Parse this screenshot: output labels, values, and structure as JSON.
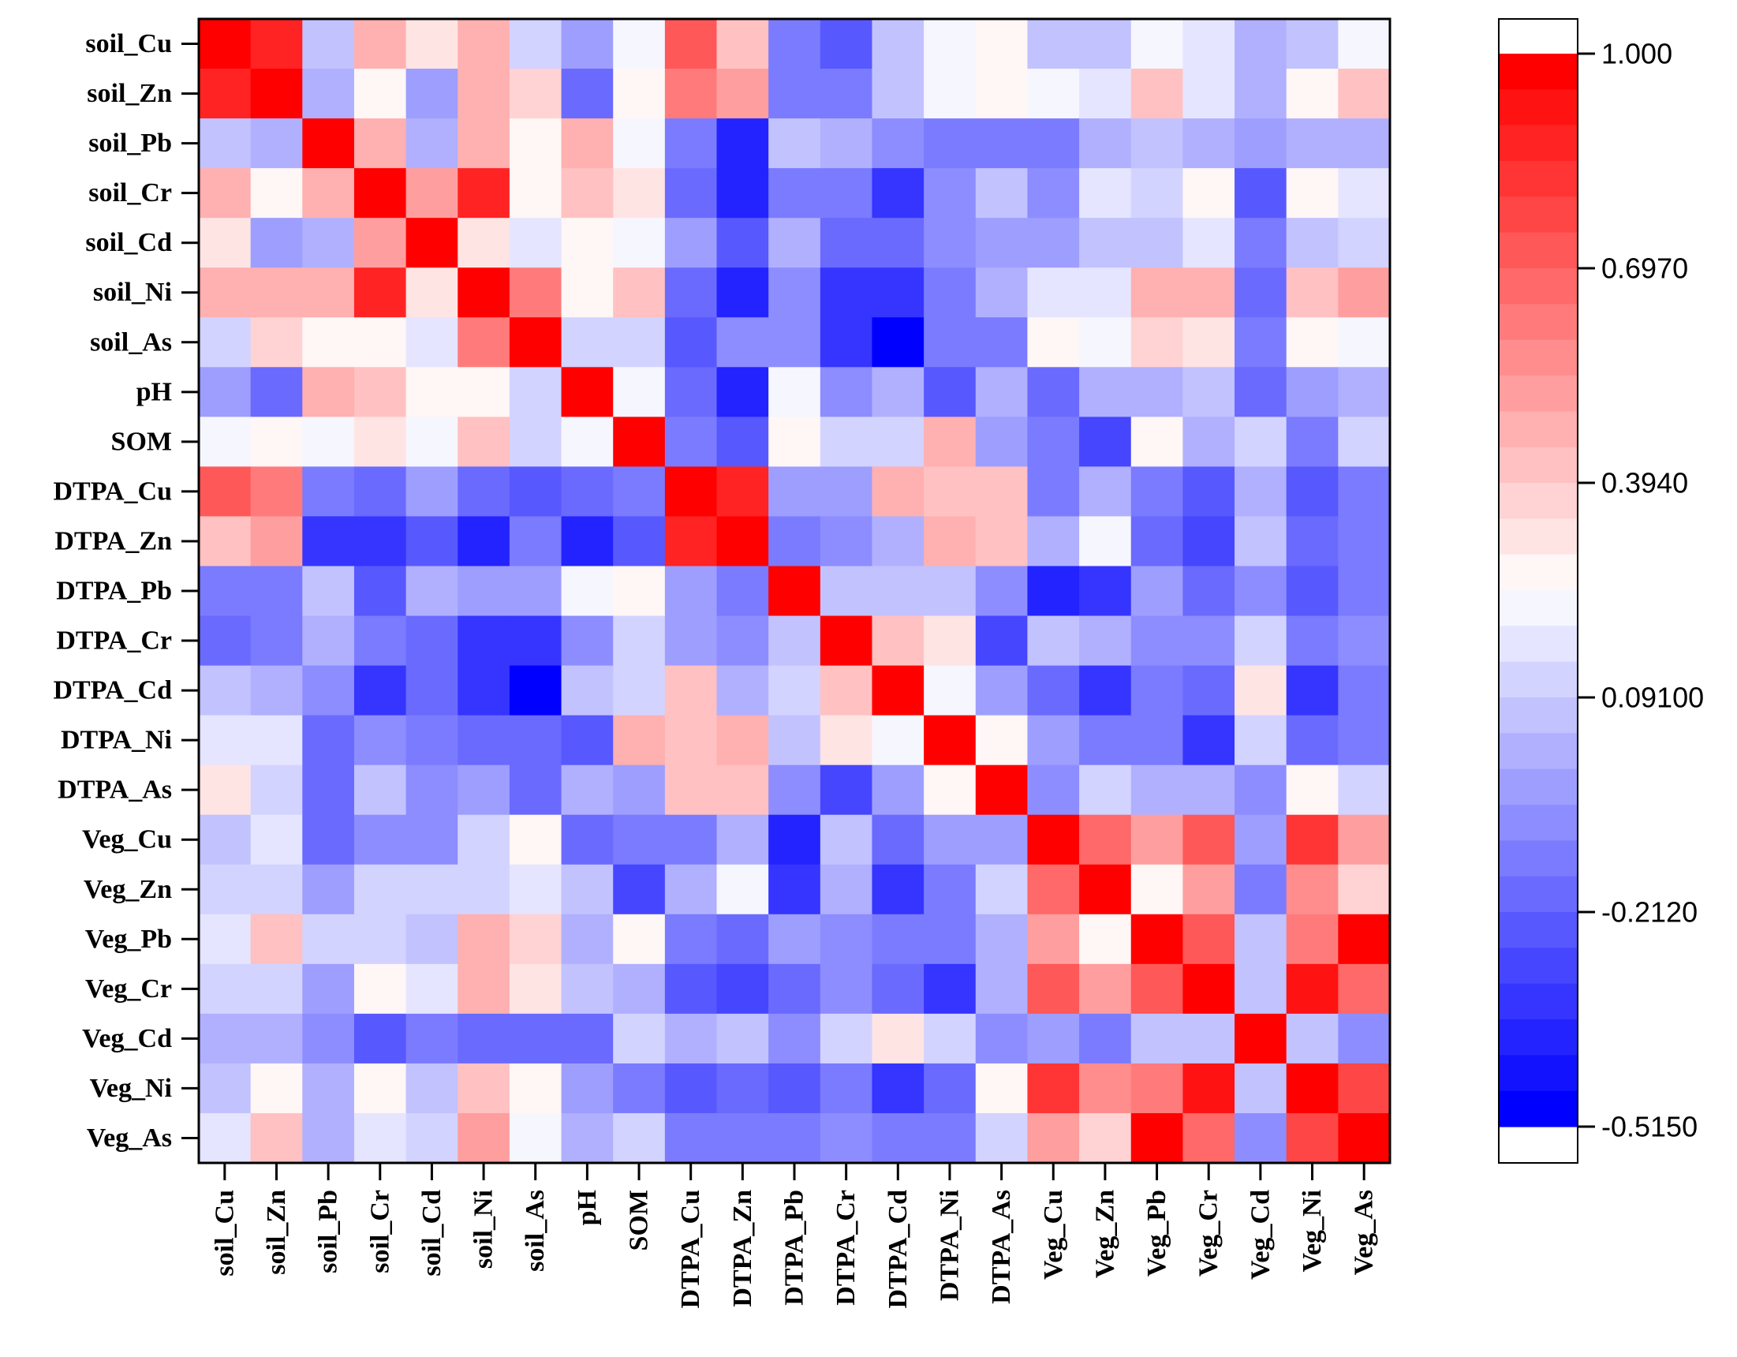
{
  "chart_data": {
    "type": "heatmap",
    "title": "",
    "row_labels": [
      "soil_Cu",
      "soil_Zn",
      "soil_Pb",
      "soil_Cr",
      "soil_Cd",
      "soil_Ni",
      "soil_As",
      "pH",
      "SOM",
      "DTPA_Cu",
      "DTPA_Zn",
      "DTPA_Pb",
      "DTPA_Cr",
      "DTPA_Cd",
      "DTPA_Ni",
      "DTPA_As",
      "Veg_Cu",
      "Veg_Zn",
      "Veg_Pb",
      "Veg_Cr",
      "Veg_Cd",
      "Veg_Ni",
      "Veg_As"
    ],
    "col_labels": [
      "soil_Cu",
      "soil_Zn",
      "soil_Pb",
      "soil_Cr",
      "soil_Cd",
      "soil_Ni",
      "soil_As",
      "pH",
      "SOM",
      "DTPA_Cu",
      "DTPA_Zn",
      "DTPA_Pb",
      "DTPA_Cr",
      "DTPA_Cd",
      "DTPA_Ni",
      "DTPA_As",
      "Veg_Cu",
      "Veg_Zn",
      "Veg_Pb",
      "Veg_Cr",
      "Veg_Cd",
      "Veg_Ni",
      "Veg_As"
    ],
    "values": [
      [
        1.0,
        0.85,
        0.05,
        0.45,
        0.32,
        0.48,
        0.12,
        -0.02,
        0.21,
        0.7,
        0.42,
        -0.12,
        -0.22,
        0.08,
        0.2,
        0.28,
        0.06,
        0.09,
        0.21,
        0.15,
        -0.01,
        0.08,
        0.2
      ],
      [
        0.85,
        1.0,
        0.03,
        0.26,
        -0.02,
        0.48,
        0.38,
        -0.2,
        0.28,
        0.6,
        0.52,
        -0.12,
        -0.12,
        0.07,
        0.2,
        0.25,
        0.2,
        0.16,
        0.42,
        0.17,
        0.02,
        0.29,
        0.4
      ],
      [
        0.05,
        0.03,
        1.0,
        0.45,
        0.04,
        0.48,
        0.26,
        0.48,
        0.21,
        -0.16,
        -0.4,
        0.08,
        0.0,
        -0.09,
        -0.12,
        -0.12,
        -0.15,
        0.0,
        0.08,
        0.0,
        -0.06,
        0.0,
        0.0
      ],
      [
        0.45,
        0.26,
        0.45,
        1.0,
        0.52,
        0.88,
        0.27,
        0.4,
        0.32,
        -0.2,
        -0.38,
        -0.16,
        -0.12,
        -0.35,
        -0.09,
        0.07,
        -0.08,
        0.15,
        0.1,
        0.28,
        -0.24,
        0.28,
        0.15
      ],
      [
        0.32,
        -0.02,
        0.04,
        0.52,
        1.0,
        0.34,
        0.16,
        0.28,
        0.22,
        -0.06,
        -0.22,
        -0.01,
        -0.2,
        -0.2,
        -0.09,
        -0.05,
        -0.05,
        0.09,
        0.05,
        0.15,
        -0.12,
        0.06,
        0.1
      ],
      [
        0.48,
        0.48,
        0.48,
        0.88,
        0.34,
        1.0,
        0.62,
        0.28,
        0.4,
        -0.2,
        -0.4,
        -0.08,
        -0.32,
        -0.32,
        -0.14,
        0.02,
        0.17,
        0.17,
        0.47,
        0.47,
        -0.18,
        0.44,
        0.52
      ],
      [
        0.12,
        0.38,
        0.26,
        0.27,
        0.16,
        0.62,
        1.0,
        0.1,
        0.14,
        -0.22,
        -0.09,
        -0.08,
        -0.35,
        -0.5,
        -0.14,
        -0.16,
        0.26,
        0.21,
        0.38,
        0.34,
        -0.15,
        0.26,
        0.2
      ],
      [
        -0.02,
        -0.2,
        0.48,
        0.4,
        0.28,
        0.28,
        0.1,
        1.0,
        0.21,
        -0.18,
        -0.4,
        0.22,
        -0.1,
        0.04,
        -0.24,
        0.04,
        -0.2,
        0.04,
        0.02,
        0.08,
        -0.18,
        -0.06,
        0.0
      ],
      [
        0.21,
        0.28,
        0.21,
        0.32,
        0.22,
        0.4,
        0.14,
        0.21,
        1.0,
        -0.12,
        -0.25,
        0.27,
        0.14,
        0.14,
        0.49,
        -0.06,
        -0.13,
        -0.3,
        0.28,
        0.02,
        0.14,
        -0.12,
        0.12
      ],
      [
        0.7,
        0.6,
        -0.16,
        -0.2,
        -0.06,
        -0.2,
        -0.22,
        -0.18,
        -0.12,
        1.0,
        0.85,
        -0.06,
        -0.06,
        0.45,
        0.4,
        0.4,
        -0.15,
        0.0,
        -0.15,
        -0.22,
        0.04,
        -0.22,
        -0.16
      ],
      [
        0.42,
        0.52,
        -0.32,
        -0.32,
        -0.22,
        -0.38,
        -0.13,
        -0.37,
        -0.25,
        0.85,
        1.0,
        -0.15,
        -0.1,
        0.04,
        0.47,
        0.4,
        0.0,
        0.21,
        -0.18,
        -0.3,
        0.06,
        -0.19,
        -0.14
      ],
      [
        -0.12,
        -0.12,
        0.08,
        -0.22,
        0.0,
        -0.06,
        -0.06,
        0.22,
        0.26,
        -0.06,
        -0.15,
        1.0,
        0.08,
        0.08,
        0.08,
        -0.09,
        -0.38,
        -0.32,
        -0.04,
        -0.2,
        -0.1,
        -0.22,
        -0.12
      ],
      [
        -0.18,
        -0.12,
        -0.01,
        -0.14,
        -0.18,
        -0.32,
        -0.32,
        -0.11,
        0.13,
        -0.06,
        -0.1,
        0.08,
        1.0,
        0.44,
        0.34,
        -0.28,
        0.07,
        0.02,
        -0.08,
        -0.08,
        0.14,
        -0.14,
        -0.1
      ],
      [
        0.07,
        0.03,
        -0.09,
        -0.32,
        -0.2,
        -0.35,
        -0.5,
        0.07,
        0.13,
        0.4,
        0.04,
        0.12,
        0.44,
        1.0,
        0.2,
        -0.06,
        -0.2,
        -0.36,
        -0.16,
        -0.2,
        0.32,
        -0.32,
        -0.14
      ],
      [
        0.19,
        0.19,
        -0.18,
        -0.09,
        -0.12,
        -0.18,
        -0.18,
        -0.22,
        0.45,
        0.4,
        0.47,
        0.08,
        0.34,
        0.2,
        1.0,
        0.28,
        -0.06,
        -0.12,
        -0.12,
        -0.35,
        0.14,
        -0.2,
        -0.12
      ],
      [
        0.34,
        0.14,
        -0.18,
        0.08,
        -0.09,
        -0.04,
        -0.2,
        0.04,
        -0.06,
        0.4,
        0.4,
        -0.09,
        -0.28,
        -0.06,
        0.28,
        1.0,
        -0.08,
        0.1,
        0.04,
        0.04,
        -0.1,
        0.26,
        0.1
      ],
      [
        0.06,
        0.18,
        -0.2,
        -0.08,
        -0.08,
        0.14,
        0.26,
        -0.2,
        -0.13,
        -0.15,
        0.0,
        -0.38,
        0.07,
        -0.2,
        -0.06,
        -0.06,
        1.0,
        0.66,
        0.5,
        0.71,
        -0.02,
        0.8,
        0.5
      ],
      [
        0.1,
        0.13,
        -0.02,
        0.13,
        0.1,
        0.14,
        0.18,
        0.06,
        -0.3,
        0.0,
        0.21,
        -0.32,
        0.02,
        -0.36,
        -0.12,
        0.1,
        0.66,
        1.0,
        0.28,
        0.52,
        -0.14,
        0.58,
        0.36
      ],
      [
        0.19,
        0.4,
        0.1,
        0.1,
        0.08,
        0.47,
        0.38,
        0.02,
        0.28,
        -0.15,
        -0.18,
        -0.04,
        -0.08,
        -0.16,
        -0.12,
        0.04,
        0.5,
        0.28,
        1.0,
        0.72,
        0.08,
        0.6,
        0.95
      ],
      [
        0.13,
        0.13,
        -0.02,
        0.26,
        0.15,
        0.47,
        0.34,
        0.08,
        0.01,
        -0.22,
        -0.3,
        -0.2,
        -0.08,
        -0.2,
        -0.35,
        0.04,
        0.71,
        0.52,
        0.72,
        1.0,
        0.08,
        0.9,
        0.66
      ],
      [
        0.02,
        0.02,
        -0.07,
        -0.24,
        -0.12,
        -0.18,
        -0.18,
        -0.18,
        0.14,
        0.04,
        0.06,
        -0.1,
        0.14,
        0.32,
        0.14,
        -0.1,
        -0.02,
        -0.14,
        0.08,
        0.08,
        1.0,
        0.05,
        -0.08
      ],
      [
        0.08,
        0.28,
        0.02,
        0.28,
        0.06,
        0.44,
        0.26,
        -0.06,
        -0.12,
        -0.22,
        -0.19,
        -0.22,
        -0.14,
        -0.32,
        -0.2,
        0.26,
        0.8,
        0.58,
        0.6,
        0.9,
        0.05,
        1.0,
        0.75
      ],
      [
        0.18,
        0.4,
        0.02,
        0.15,
        0.1,
        0.52,
        0.2,
        0.0,
        0.12,
        -0.16,
        -0.14,
        -0.12,
        -0.1,
        -0.14,
        -0.12,
        0.1,
        0.5,
        0.36,
        0.95,
        0.66,
        -0.08,
        0.75,
        1.0
      ]
    ],
    "colorbar": {
      "min": -0.515,
      "max": 1.0,
      "tick_labels": [
        "1.000",
        "0.6970",
        "0.3940",
        "0.09100",
        "-0.2120",
        "-0.5150"
      ],
      "tick_values": [
        1.0,
        0.697,
        0.394,
        0.091,
        -0.212,
        -0.515
      ],
      "low_color": "#0000ff",
      "mid_color": "#ffffff",
      "high_color": "#ff0000"
    }
  }
}
